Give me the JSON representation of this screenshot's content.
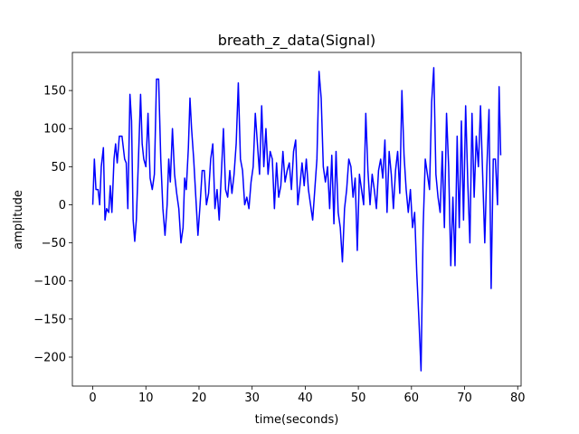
{
  "chart_data": {
    "type": "line",
    "title": "breath_z_data(Signal)",
    "xlabel": "time(seconds)",
    "ylabel": "amplitude",
    "x": [
      0,
      0.3,
      0.6,
      1,
      1.3,
      1.6,
      2,
      2.3,
      2.6,
      3,
      3.3,
      3.6,
      4,
      4.3,
      4.6,
      5,
      5.5,
      6,
      6.3,
      6.6,
      7,
      7.3,
      7.6,
      7.9,
      8.2,
      8.6,
      9,
      9.3,
      9.6,
      10,
      10.4,
      10.8,
      11.2,
      11.6,
      12,
      12.4,
      12.8,
      13.2,
      13.6,
      14,
      14.3,
      14.6,
      15,
      15.4,
      15.8,
      16.2,
      16.6,
      17,
      17.3,
      17.6,
      18,
      18.3,
      18.6,
      19,
      19.4,
      19.8,
      20.2,
      20.6,
      21,
      21.4,
      21.8,
      22.2,
      22.6,
      23,
      23.4,
      23.8,
      24.2,
      24.6,
      25,
      25.4,
      25.8,
      26.2,
      26.6,
      27,
      27.4,
      27.8,
      28.2,
      28.6,
      29,
      29.4,
      29.8,
      30.2,
      30.6,
      31,
      31.4,
      31.8,
      32.2,
      32.6,
      33,
      33.4,
      33.8,
      34.2,
      34.6,
      35,
      35.4,
      35.8,
      36.2,
      36.6,
      37,
      37.4,
      37.8,
      38.2,
      38.6,
      39,
      39.4,
      39.8,
      40.2,
      40.6,
      41,
      41.4,
      41.8,
      42.2,
      42.6,
      43,
      43.4,
      43.8,
      44.2,
      44.6,
      45,
      45.4,
      45.8,
      46.2,
      46.6,
      47,
      47.4,
      47.8,
      48.2,
      48.6,
      49,
      49.4,
      49.8,
      50.2,
      50.6,
      51,
      51.4,
      51.8,
      52.2,
      52.6,
      53,
      53.4,
      53.8,
      54.2,
      54.6,
      55,
      55.4,
      55.8,
      56.2,
      56.6,
      57,
      57.4,
      57.8,
      58.2,
      58.6,
      59,
      59.4,
      59.8,
      60.2,
      60.6,
      61,
      61.4,
      61.8,
      62.2,
      62.6,
      63,
      63.4,
      63.8,
      64.2,
      64.6,
      65,
      65.4,
      65.8,
      66.2,
      66.6,
      67,
      67.4,
      67.8,
      68.2,
      68.6,
      69,
      69.4,
      69.8,
      70.2,
      70.6,
      71,
      71.4,
      71.8,
      72.2,
      72.6,
      73,
      73.4,
      73.8,
      74.2,
      74.6,
      75,
      75.4,
      75.8,
      76.2,
      76.5,
      76.8
    ],
    "series": [
      {
        "color": "#0000ff",
        "values": [
          0,
          60,
          20,
          20,
          0,
          50,
          75,
          -20,
          -5,
          -10,
          25,
          -10,
          60,
          80,
          55,
          90,
          90,
          60,
          55,
          -5,
          145,
          110,
          -20,
          -48,
          -20,
          60,
          145,
          80,
          60,
          50,
          120,
          35,
          20,
          40,
          165,
          165,
          60,
          -5,
          -40,
          0,
          60,
          30,
          100,
          40,
          15,
          -5,
          -50,
          -30,
          35,
          20,
          75,
          140,
          100,
          60,
          10,
          -40,
          0,
          45,
          45,
          0,
          15,
          60,
          80,
          -5,
          20,
          -20,
          40,
          100,
          20,
          10,
          45,
          15,
          40,
          80,
          160,
          60,
          45,
          0,
          10,
          -5,
          30,
          50,
          120,
          80,
          40,
          130,
          50,
          100,
          40,
          70,
          60,
          -5,
          55,
          10,
          25,
          70,
          30,
          45,
          55,
          20,
          70,
          85,
          0,
          25,
          55,
          25,
          60,
          20,
          0,
          -20,
          20,
          60,
          175,
          140,
          50,
          30,
          50,
          -5,
          65,
          -25,
          70,
          -10,
          -30,
          -75,
          -5,
          20,
          60,
          50,
          10,
          35,
          -60,
          40,
          20,
          0,
          120,
          45,
          0,
          40,
          20,
          -5,
          45,
          60,
          35,
          85,
          -10,
          70,
          40,
          -5,
          45,
          70,
          15,
          150,
          65,
          20,
          -10,
          20,
          -30,
          -10,
          -90,
          -150,
          -218,
          -30,
          60,
          40,
          20,
          135,
          180,
          40,
          10,
          -10,
          70,
          -30,
          120,
          50,
          -80,
          10,
          -80,
          90,
          -30,
          110,
          -20,
          130,
          30,
          -50,
          120,
          10,
          90,
          50,
          130,
          40,
          -50,
          50,
          125,
          -110,
          60,
          60,
          0,
          155,
          65
        ]
      }
    ],
    "xlim": [
      -3.84,
      80.64
    ],
    "ylim": [
      -238,
      200
    ],
    "xticks": [
      0,
      10,
      20,
      30,
      40,
      50,
      60,
      70,
      80
    ],
    "yticks": [
      {
        "value": -200,
        "label": "−200"
      },
      {
        "value": -150,
        "label": "−150"
      },
      {
        "value": -100,
        "label": "−100"
      },
      {
        "value": -50,
        "label": "−50"
      },
      0,
      50,
      100,
      150
    ]
  }
}
